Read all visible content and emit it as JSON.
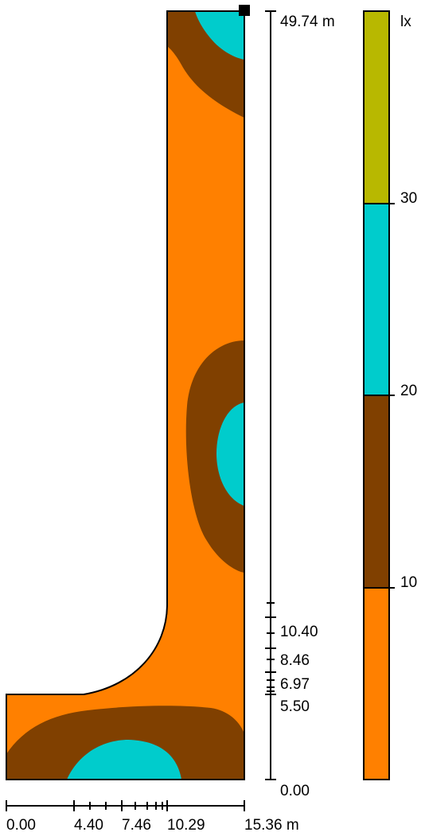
{
  "colors": {
    "zone_0_10": "#ff8000",
    "zone_10_20": "#804000",
    "zone_20_30": "#00cccc",
    "zone_30_plus": "#b8b800",
    "outline": "#000000"
  },
  "plan": {
    "luminaire_marker": "square-marker"
  },
  "y_scale": {
    "top_label": "49.74 m",
    "labels": [
      "10.40",
      "8.46",
      "6.97",
      "5.50",
      "0.00"
    ]
  },
  "x_scale": {
    "labels": [
      "0.00",
      "4.40",
      "7.46",
      "10.29",
      "15.36 m"
    ]
  },
  "legend": {
    "unit": "lx",
    "ticks": [
      "30",
      "20",
      "10"
    ]
  }
}
